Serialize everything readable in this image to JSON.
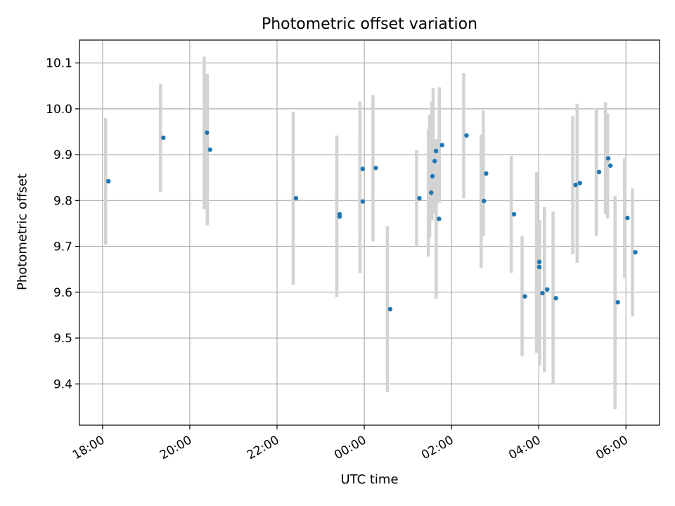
{
  "chart_data": {
    "type": "scatter",
    "title": "Photometric offset variation",
    "xlabel": "UTC time",
    "ylabel": "Photometric offset",
    "grid": true,
    "legend": "none",
    "colors": {
      "point": "#1f77b4",
      "errorbar": "#d3d3d3",
      "grid": "#b0b0b0"
    },
    "x_ticks": [
      {
        "hour": 18,
        "label": "18:00"
      },
      {
        "hour": 20,
        "label": "20:00"
      },
      {
        "hour": 22,
        "label": "22:00"
      },
      {
        "hour": 24,
        "label": "00:00"
      },
      {
        "hour": 26,
        "label": "02:00"
      },
      {
        "hour": 28,
        "label": "04:00"
      },
      {
        "hour": 30,
        "label": "06:00"
      }
    ],
    "y_ticks": [
      {
        "value": 9.4,
        "label": "9.4"
      },
      {
        "value": 9.5,
        "label": "9.5"
      },
      {
        "value": 9.6,
        "label": "9.6"
      },
      {
        "value": 9.7,
        "label": "9.7"
      },
      {
        "value": 9.8,
        "label": "9.8"
      },
      {
        "value": 9.9,
        "label": "9.9"
      },
      {
        "value": 10.0,
        "label": "10.0"
      },
      {
        "value": 10.1,
        "label": "10.1"
      }
    ],
    "xlim": [
      17.47,
      30.77
    ],
    "ylim": [
      9.31,
      10.15
    ],
    "x_unit": "hours UTC (values past 24 are the following day)",
    "points": [
      {
        "x": 18.07,
        "y": 9.842,
        "yerr_low": 9.704,
        "yerr_high": 9.98
      },
      {
        "x": 19.33,
        "y": 9.937,
        "yerr_low": 9.819,
        "yerr_high": 10.055
      },
      {
        "x": 20.33,
        "y": 9.948,
        "yerr_low": 9.781,
        "yerr_high": 10.114
      },
      {
        "x": 20.4,
        "y": 9.911,
        "yerr_low": 9.746,
        "yerr_high": 10.076
      },
      {
        "x": 22.37,
        "y": 9.805,
        "yerr_low": 9.616,
        "yerr_high": 9.994
      },
      {
        "x": 23.37,
        "y": 9.77,
        "yerr_low": 9.599,
        "yerr_high": 9.942
      },
      {
        "x": 23.37,
        "y": 9.765,
        "yerr_low": 9.589,
        "yerr_high": 9.94
      },
      {
        "x": 23.9,
        "y": 9.869,
        "yerr_low": 9.722,
        "yerr_high": 10.016
      },
      {
        "x": 23.9,
        "y": 9.798,
        "yerr_low": 9.641,
        "yerr_high": 9.955
      },
      {
        "x": 24.2,
        "y": 9.871,
        "yerr_low": 9.711,
        "yerr_high": 10.03
      },
      {
        "x": 24.53,
        "y": 9.563,
        "yerr_low": 9.382,
        "yerr_high": 9.744
      },
      {
        "x": 25.2,
        "y": 9.805,
        "yerr_low": 9.7,
        "yerr_high": 9.91
      },
      {
        "x": 25.47,
        "y": 9.817,
        "yerr_low": 9.678,
        "yerr_high": 9.956
      },
      {
        "x": 25.5,
        "y": 9.853,
        "yerr_low": 9.719,
        "yerr_high": 9.987
      },
      {
        "x": 25.55,
        "y": 9.886,
        "yerr_low": 9.756,
        "yerr_high": 10.016
      },
      {
        "x": 25.58,
        "y": 9.908,
        "yerr_low": 9.771,
        "yerr_high": 10.045
      },
      {
        "x": 25.65,
        "y": 9.76,
        "yerr_low": 9.586,
        "yerr_high": 9.934
      },
      {
        "x": 25.72,
        "y": 9.921,
        "yerr_low": 9.795,
        "yerr_high": 10.047
      },
      {
        "x": 26.28,
        "y": 9.942,
        "yerr_low": 9.805,
        "yerr_high": 10.078
      },
      {
        "x": 26.68,
        "y": 9.799,
        "yerr_low": 9.653,
        "yerr_high": 9.944
      },
      {
        "x": 26.73,
        "y": 9.859,
        "yerr_low": 9.722,
        "yerr_high": 9.996
      },
      {
        "x": 27.37,
        "y": 9.77,
        "yerr_low": 9.642,
        "yerr_high": 9.897
      },
      {
        "x": 27.62,
        "y": 9.591,
        "yerr_low": 9.46,
        "yerr_high": 9.722
      },
      {
        "x": 27.95,
        "y": 9.666,
        "yerr_low": 9.469,
        "yerr_high": 9.862
      },
      {
        "x": 27.95,
        "y": 9.655,
        "yerr_low": 9.468,
        "yerr_high": 9.842
      },
      {
        "x": 28.02,
        "y": 9.598,
        "yerr_low": 9.44,
        "yerr_high": 9.757
      },
      {
        "x": 28.13,
        "y": 9.606,
        "yerr_low": 9.426,
        "yerr_high": 9.786
      },
      {
        "x": 28.33,
        "y": 9.587,
        "yerr_low": 9.399,
        "yerr_high": 9.776
      },
      {
        "x": 28.78,
        "y": 9.834,
        "yerr_low": 9.683,
        "yerr_high": 9.985
      },
      {
        "x": 28.88,
        "y": 9.838,
        "yerr_low": 9.664,
        "yerr_high": 10.011
      },
      {
        "x": 29.32,
        "y": 9.862,
        "yerr_low": 9.723,
        "yerr_high": 10.002
      },
      {
        "x": 29.53,
        "y": 9.892,
        "yerr_low": 9.77,
        "yerr_high": 10.015
      },
      {
        "x": 29.58,
        "y": 9.876,
        "yerr_low": 9.761,
        "yerr_high": 9.99
      },
      {
        "x": 29.75,
        "y": 9.578,
        "yerr_low": 9.345,
        "yerr_high": 9.81
      },
      {
        "x": 29.97,
        "y": 9.762,
        "yerr_low": 9.63,
        "yerr_high": 9.893
      },
      {
        "x": 30.15,
        "y": 9.687,
        "yerr_low": 9.547,
        "yerr_high": 9.826
      }
    ]
  }
}
